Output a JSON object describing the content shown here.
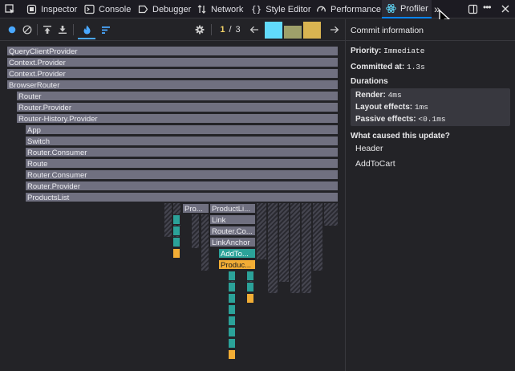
{
  "tabs": [
    {
      "label": "Inspector",
      "icon": "inspector-icon"
    },
    {
      "label": "Console",
      "icon": "console-icon"
    },
    {
      "label": "Debugger",
      "icon": "debugger-icon"
    },
    {
      "label": "Network",
      "icon": "network-icon"
    },
    {
      "label": "Style Editor",
      "icon": "style-editor-icon"
    },
    {
      "label": "Performance",
      "icon": "performance-icon"
    },
    {
      "label": "Profiler",
      "icon": "react-icon",
      "selected": true
    }
  ],
  "toolbar": {
    "commit_current": "1",
    "commit_separator": "/",
    "commit_total": "3",
    "commit_chart": {
      "heights": [
        1.0,
        0.75,
        1.0
      ],
      "colors": [
        "#61dafb",
        "#9ea06a",
        "#d9b451"
      ]
    }
  },
  "flame": {
    "nodes": [
      {
        "label": "QueryClientProvider"
      },
      {
        "label": "Context.Provider"
      },
      {
        "label": "Context.Provider"
      },
      {
        "label": "BrowserRouter"
      },
      {
        "label": "Router"
      },
      {
        "label": "Router.Provider"
      },
      {
        "label": "Router-History.Provider"
      },
      {
        "label": "App"
      },
      {
        "label": "Switch"
      },
      {
        "label": "Router.Consumer"
      },
      {
        "label": "Route"
      },
      {
        "label": "Router.Consumer"
      },
      {
        "label": "Router.Provider"
      },
      {
        "label": "ProductsList"
      },
      {
        "label": "Pro..."
      },
      {
        "label": "ProductLi..."
      },
      {
        "label": "Link"
      },
      {
        "label": "Router.Co..."
      },
      {
        "label": "LinkAnchor"
      },
      {
        "label": "AddTo..."
      },
      {
        "label": "Produc..."
      }
    ]
  },
  "sidebar": {
    "header": "Commit information",
    "priority_label": "Priority:",
    "priority_value": "Immediate",
    "committed_label": "Committed at:",
    "committed_value": "1.3s",
    "durations_title": "Durations",
    "render_label": "Render:",
    "render_value": "4ms",
    "layout_label": "Layout effects:",
    "layout_value": "1ms",
    "passive_label": "Passive effects:",
    "passive_value": "<0.1ms",
    "cause_title": "What caused this update?",
    "causes": [
      "Header",
      "AddToCart"
    ]
  },
  "colors": {
    "accent": "#0a84ff",
    "teal": "#2ba299",
    "gold": "#f2ad35",
    "commit_selected": "#61dafb"
  }
}
